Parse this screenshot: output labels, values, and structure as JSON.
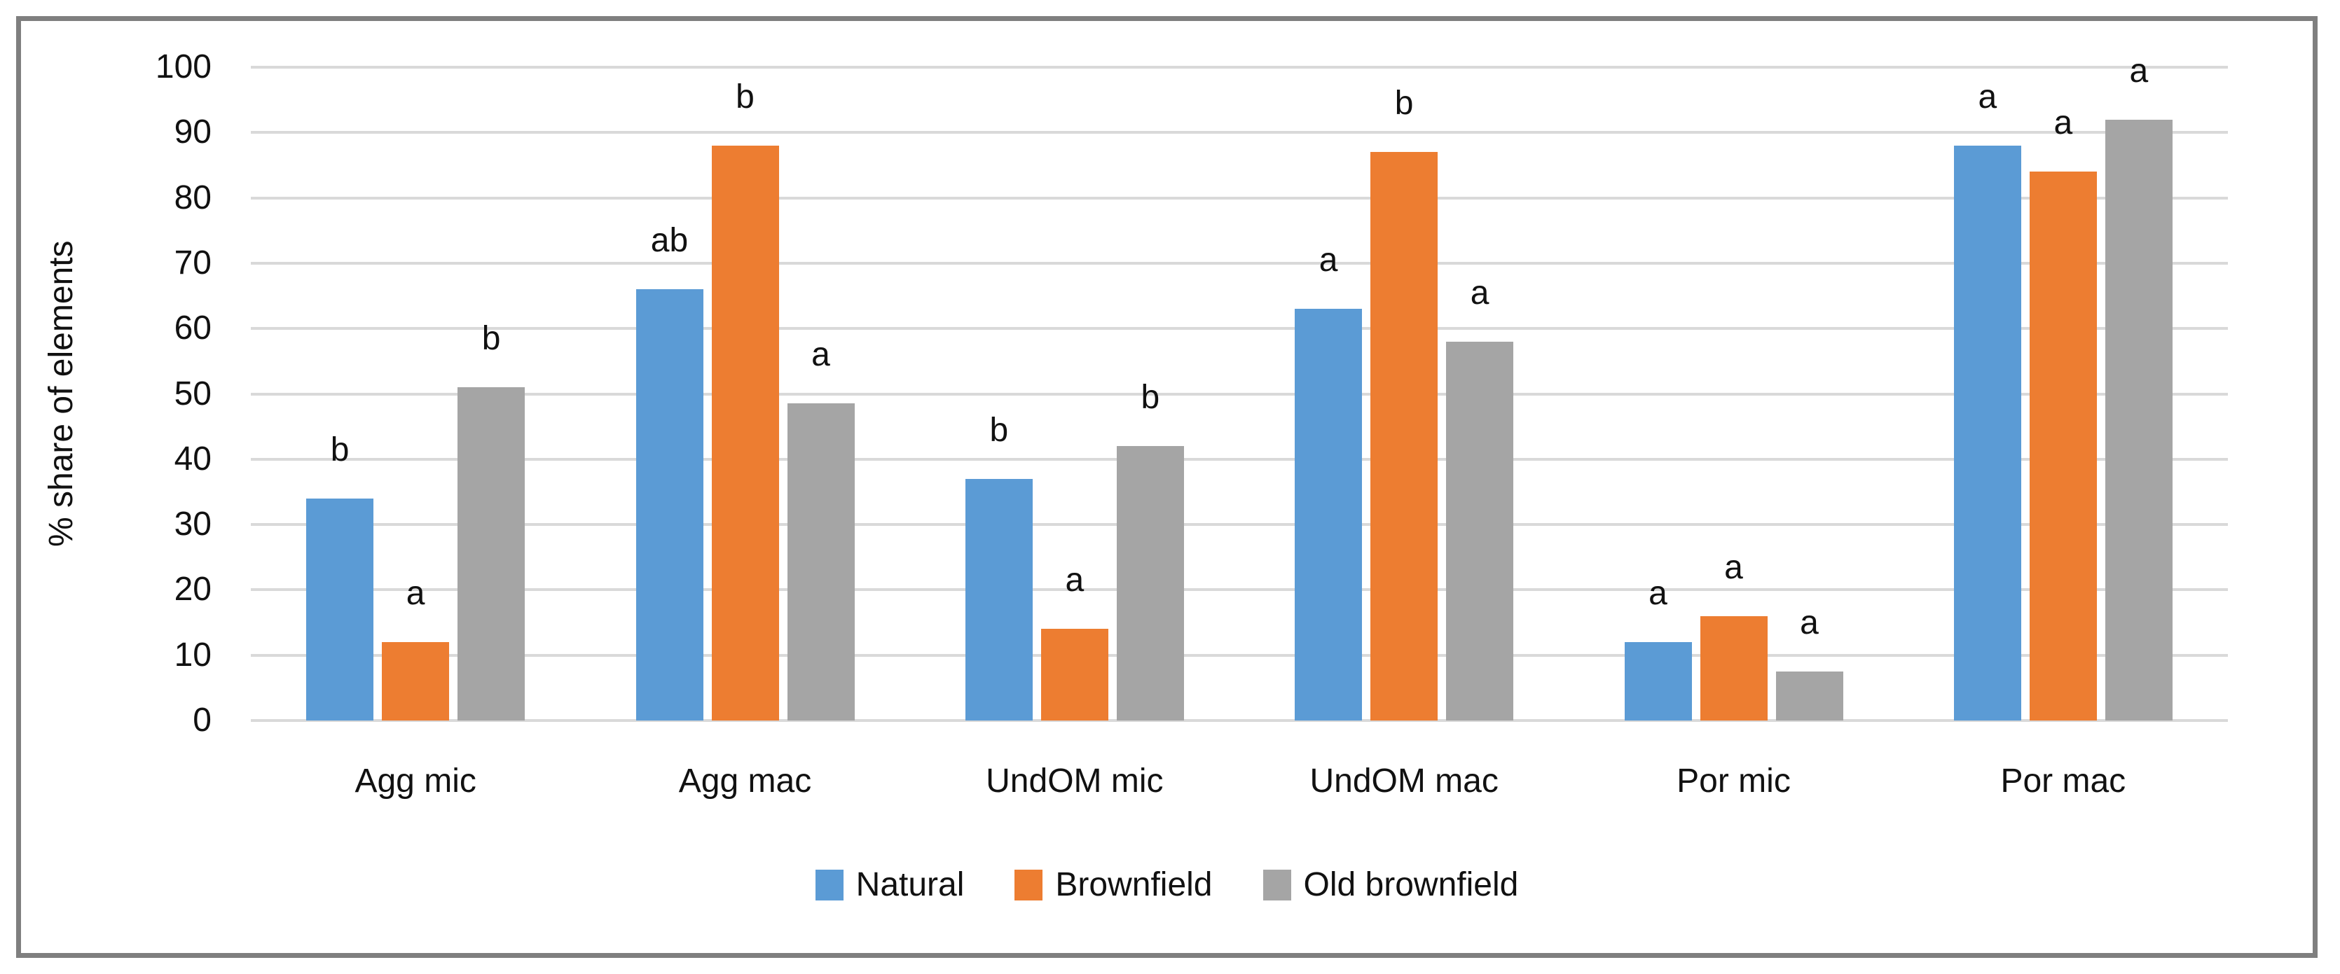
{
  "chart_data": {
    "type": "bar",
    "title": "",
    "ylabel": "% share of elements",
    "ylim": [
      0,
      100
    ],
    "yticks": [
      0,
      10,
      20,
      30,
      40,
      50,
      60,
      70,
      80,
      90,
      100
    ],
    "grid": true,
    "legend_position": "bottom",
    "categories": [
      "Agg mic",
      "Agg mac",
      "UndOM mic",
      "UndOM mac",
      "Por mic",
      "Por mac"
    ],
    "series": [
      {
        "name": "Natural",
        "color": "#5B9BD5",
        "values": [
          34,
          66,
          37,
          63,
          12,
          88
        ],
        "letters": [
          "b",
          "ab",
          "b",
          "a",
          "a",
          "a"
        ]
      },
      {
        "name": "Brownfield",
        "color": "#ED7D31",
        "values": [
          12,
          88,
          14,
          87,
          16,
          84
        ],
        "letters": [
          "a",
          "b",
          "a",
          "b",
          "a",
          "a"
        ]
      },
      {
        "name": "Old brownfield",
        "color": "#A5A5A5",
        "values": [
          51,
          48.5,
          42,
          58,
          7.5,
          92
        ],
        "letters": [
          "b",
          "a",
          "b",
          "a",
          "a",
          "a"
        ]
      }
    ]
  },
  "style": {
    "border_color": "#7F7F7F",
    "gridline_color": "#D9D9D9",
    "text_color": "#111111",
    "background": "#FFFFFF"
  }
}
